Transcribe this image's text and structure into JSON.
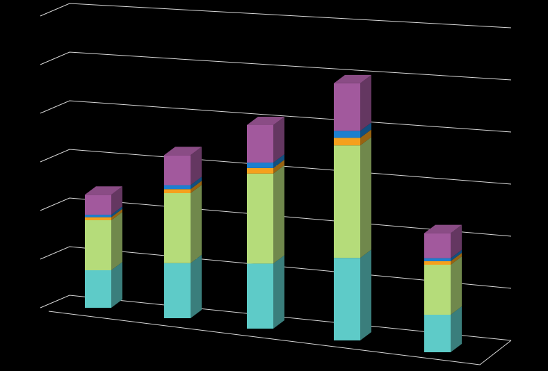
{
  "chart_data": {
    "type": "bar3d-stacked",
    "categories": [
      null,
      null,
      null,
      null,
      null
    ],
    "series": [
      {
        "color": "#5ecbc8",
        "values": [
          0.75,
          1.1,
          1.3,
          1.65,
          0.75
        ]
      },
      {
        "color": "#b5dc7a",
        "values": [
          1.0,
          1.4,
          1.8,
          2.25,
          1.0
        ]
      },
      {
        "color": "#f5a01d",
        "values": [
          0.06,
          0.08,
          0.11,
          0.15,
          0.07
        ]
      },
      {
        "color": "#1d7fcf",
        "values": [
          0.05,
          0.08,
          0.11,
          0.14,
          0.06
        ]
      },
      {
        "color": "#a2599d",
        "values": [
          0.4,
          0.6,
          0.75,
          0.95,
          0.5
        ]
      }
    ],
    "ylim": [
      0,
      6
    ],
    "yticks": [
      0,
      1,
      2,
      3,
      4,
      5,
      6
    ],
    "grid": true
  }
}
